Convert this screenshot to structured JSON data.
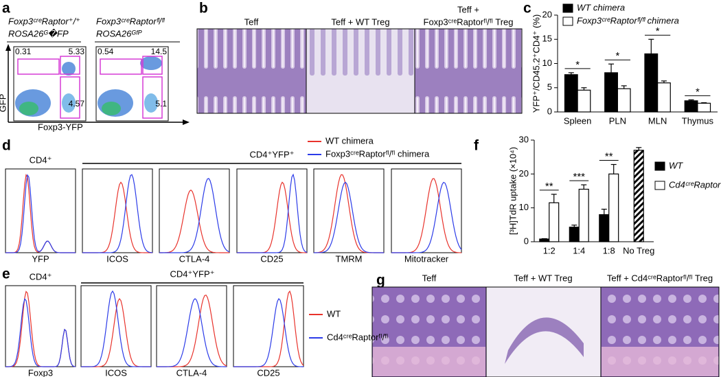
{
  "panel_a": {
    "letter": "a",
    "y_axis": "GFP",
    "x_axis": "Foxp3-YFP",
    "samples": [
      {
        "genotype": "Foxp3ᶜʳᵉRaptor⁺/⁺",
        "reporter": "ROSA26ᴳ�FP",
        "gates": [
          0.31,
          5.33,
          4.57
        ]
      },
      {
        "genotype": "Foxp3ᶜʳᵉRaptorᶠˡ/ᶠˡ",
        "reporter": "ROSA26ᴳᶠᴾ",
        "gates": [
          0.54,
          14.5,
          5.1
        ]
      }
    ]
  },
  "panel_b": {
    "letter": "b",
    "images": [
      [
        "Teff"
      ],
      [
        "Teff + WT Treg"
      ],
      [
        "Teff +",
        "Foxp3ᶜʳᵉRaptorᶠˡ/ᶠˡ Treg"
      ]
    ]
  },
  "panel_d": {
    "letter": "d",
    "group_single": "CD4⁺",
    "group": "CD4⁺YFP⁺",
    "legend": [
      {
        "name": "WT chimera",
        "color": "#e8322b"
      },
      {
        "name": "Foxp3ᶜʳᵉRaptorᶠˡ/ᶠˡ chimera",
        "color": "#2b3be8"
      }
    ],
    "markers": [
      "YFP",
      "ICOS",
      "CTLA-4",
      "CD25",
      "TMRM",
      "Mitotracker"
    ]
  },
  "panel_e": {
    "letter": "e",
    "group_single": "CD4⁺",
    "group": "CD4⁺YFP⁺",
    "legend": [
      {
        "name": "WT",
        "color": "#e8322b"
      },
      {
        "name": "Cd4ᶜʳᵉRaptorᶠˡ/ᶠˡ",
        "color": "#2b3be8"
      }
    ],
    "markers": [
      "Foxp3",
      "ICOS",
      "CTLA-4",
      "CD25"
    ]
  },
  "panel_g": {
    "letter": "g",
    "images": [
      "Teff",
      "Teff + WT Treg",
      "Teff + Cd4ᶜʳᵉRaptorᶠˡ/ᶠˡ Treg"
    ]
  },
  "chart_data": [
    {
      "type": "bar",
      "letter": "c",
      "ylabel": "YFP⁺/CD45.2⁺CD4⁺ (%)",
      "categories": [
        "Spleen",
        "PLN",
        "MLN",
        "Thymus"
      ],
      "series": [
        {
          "name": "WT chimera",
          "color": "#000000",
          "values": [
            7.7,
            8.1,
            12,
            2.3
          ],
          "errors": [
            0.4,
            1.8,
            3,
            0.2
          ]
        },
        {
          "name": "Foxp3ᶜʳᵉRaptorᶠˡ/ᶠˡ chimera",
          "color": "#ffffff",
          "values": [
            4.5,
            4.8,
            6,
            1.8
          ],
          "errors": [
            0.5,
            0.6,
            0.4,
            0.1
          ]
        }
      ],
      "annotations": [
        "*",
        "*",
        "*",
        "*"
      ],
      "ylim": [
        0,
        20
      ],
      "yticks": [
        0,
        5,
        10,
        15,
        20
      ],
      "legend": "top"
    },
    {
      "type": "bar",
      "letter": "f",
      "ylabel": "[³H]TdR uptake (×10⁴)",
      "categories": [
        "1:2",
        "1:4",
        "1:8",
        "No Treg"
      ],
      "series": [
        {
          "name": "WT",
          "color": "#000000",
          "values": [
            0.8,
            4.3,
            8,
            null
          ],
          "errors": [
            0.1,
            0.6,
            1.6,
            null
          ]
        },
        {
          "name": "Cd4ᶜʳᵉRaptorᶠˡ/ᶠˡ",
          "color": "#ffffff",
          "values": [
            11.5,
            15.5,
            20,
            null
          ],
          "errors": [
            2.5,
            1.3,
            2.8,
            null
          ]
        },
        {
          "color": "#000000",
          "pattern": "hatch",
          "values": [
            null,
            null,
            null,
            27
          ],
          "errors": [
            null,
            null,
            null,
            0.8
          ]
        }
      ],
      "annotations": [
        "**",
        "***",
        "**",
        null
      ],
      "ylim": [
        0,
        30
      ],
      "yticks": [
        0,
        10,
        20,
        30
      ],
      "legend": "right"
    }
  ]
}
